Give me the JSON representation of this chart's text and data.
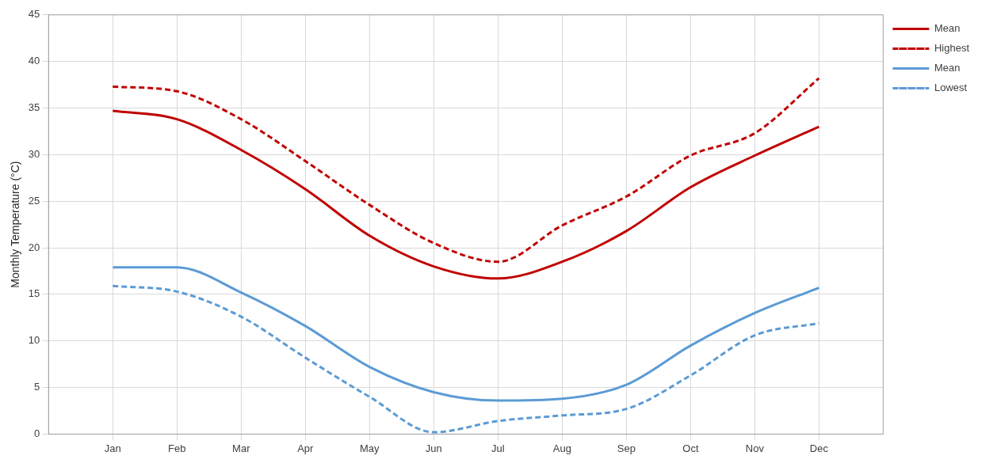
{
  "chart_data": {
    "type": "line",
    "ylabel": "Monthly Temperature (°C)",
    "categories": [
      "Jan",
      "Feb",
      "Mar",
      "Apr",
      "May",
      "Jun",
      "Jul",
      "Aug",
      "Sep",
      "Oct",
      "Nov",
      "Dec"
    ],
    "series": [
      {
        "name": "Mean",
        "color": "#c00000",
        "line_style": "solid",
        "values": [
          34.7,
          33.8,
          30.5,
          26.3,
          21.3,
          18.0,
          16.7,
          18.5,
          21.8,
          26.5,
          29.9,
          33.0
        ]
      },
      {
        "name": "Highest",
        "color": "#c00000",
        "line_style": "dashed",
        "values": [
          37.3,
          36.8,
          33.8,
          29.3,
          24.6,
          20.5,
          18.5,
          22.4,
          25.5,
          29.9,
          32.3,
          38.2
        ]
      },
      {
        "name": "Mean",
        "color": "#5b9bd5",
        "line_style": "solid",
        "values": [
          17.9,
          17.9,
          15.2,
          11.6,
          7.2,
          4.5,
          3.6,
          3.8,
          5.3,
          9.5,
          13.0,
          15.7
        ]
      },
      {
        "name": "Lowest",
        "color": "#5b9bd5",
        "line_style": "dashed",
        "values": [
          15.9,
          15.3,
          12.6,
          8.2,
          4.0,
          0.2,
          1.4,
          2.0,
          2.7,
          6.3,
          10.6,
          11.9
        ]
      }
    ],
    "ylim": [
      0,
      45
    ],
    "yticks": [
      0,
      5,
      10,
      15,
      20,
      25,
      30,
      35,
      40,
      45
    ],
    "grid": true,
    "legend": "top right",
    "marker": "none"
  }
}
